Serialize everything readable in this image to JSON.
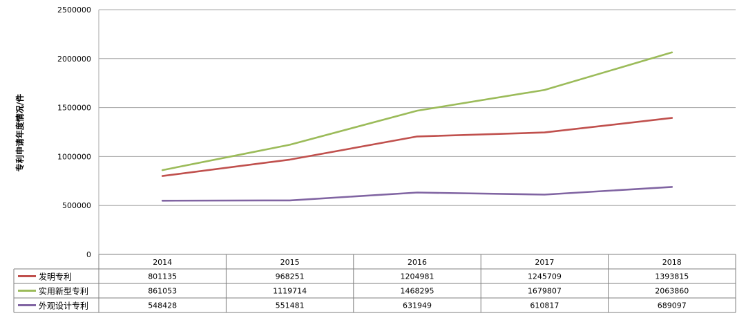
{
  "chart_data": {
    "type": "line",
    "title": "",
    "xlabel": "",
    "ylabel": "专利申请年度情况/件",
    "ylim": [
      0,
      2500000
    ],
    "yticks": [
      "0",
      "500000",
      "1000000",
      "1500000",
      "2000000",
      "2500000"
    ],
    "categories": [
      "2014",
      "2015",
      "2016",
      "2017",
      "2018"
    ],
    "grid": true,
    "legend": "data-table-left",
    "series": [
      {
        "name": "发明专利",
        "color": "#c0504d",
        "values": [
          801135,
          968251,
          1204981,
          1245709,
          1393815
        ],
        "labels": [
          "801135",
          "968251",
          "1204981",
          "1245709",
          "1393815"
        ]
      },
      {
        "name": "实用新型专利",
        "color": "#9bbb59",
        "values": [
          861053,
          1119714,
          1468295,
          1679807,
          2063860
        ],
        "labels": [
          "861053",
          "1119714",
          "1468295",
          "1679807",
          "2063860"
        ]
      },
      {
        "name": "外观设计专利",
        "color": "#8064a2",
        "values": [
          548428,
          551481,
          631949,
          610817,
          689097
        ],
        "labels": [
          "548428",
          "551481",
          "631949",
          "610817",
          "689097"
        ]
      }
    ]
  }
}
